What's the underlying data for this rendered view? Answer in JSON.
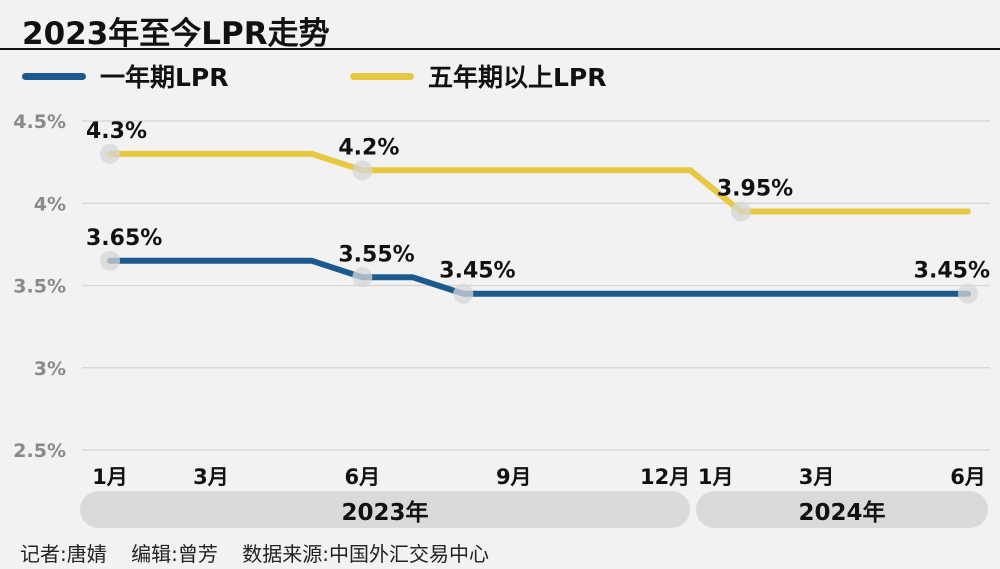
{
  "title": "2023年至今LPR走势",
  "colors": {
    "one_year": "#1c5a8e",
    "five_year": "#e7c842",
    "grid": "#d4d4d4",
    "marker": "#d6d6d6",
    "band": "#dadada"
  },
  "years": [
    "2023年",
    "2024年"
  ],
  "credits": {
    "reporter": "记者:唐婧",
    "editor": "编辑:曾芳",
    "source": "数据来源:中国外汇交易中心"
  },
  "chart_data": {
    "type": "line",
    "title": "2023年至今LPR走势",
    "xlabel": "",
    "ylabel": "",
    "ylim": [
      2.5,
      4.5
    ],
    "yticks": [
      2.5,
      3,
      3.5,
      4,
      4.5
    ],
    "ytick_labels": [
      "2.5%",
      "3%",
      "3.5%",
      "4%",
      "4.5%"
    ],
    "x_range": [
      1,
      18
    ],
    "x_ticks": [
      {
        "x": 1,
        "label": "1月"
      },
      {
        "x": 3,
        "label": "3月"
      },
      {
        "x": 6,
        "label": "6月"
      },
      {
        "x": 9,
        "label": "9月"
      },
      {
        "x": 12,
        "label": "12月"
      },
      {
        "x": 13,
        "label": "1月"
      },
      {
        "x": 15,
        "label": "3月"
      },
      {
        "x": 18,
        "label": "6月"
      }
    ],
    "series": [
      {
        "key": "five_year",
        "name": "五年期以上LPR",
        "points": [
          {
            "x": 1,
            "y": 4.3,
            "marker": true,
            "label": "4.3%"
          },
          {
            "x": 5,
            "y": 4.3
          },
          {
            "x": 6,
            "y": 4.2,
            "marker": true,
            "label": "4.2%"
          },
          {
            "x": 12.5,
            "y": 4.2
          },
          {
            "x": 13.5,
            "y": 3.95,
            "marker": true,
            "label": "3.95%"
          },
          {
            "x": 18,
            "y": 3.95
          }
        ]
      },
      {
        "key": "one_year",
        "name": "一年期LPR",
        "points": [
          {
            "x": 1,
            "y": 3.65,
            "marker": true,
            "label": "3.65%"
          },
          {
            "x": 5,
            "y": 3.65
          },
          {
            "x": 6,
            "y": 3.55,
            "marker": true,
            "label": "3.55%"
          },
          {
            "x": 7,
            "y": 3.55
          },
          {
            "x": 8,
            "y": 3.45,
            "marker": true,
            "label": "3.45%"
          },
          {
            "x": 18,
            "y": 3.45,
            "marker": true,
            "label": "3.45%"
          }
        ]
      }
    ]
  }
}
